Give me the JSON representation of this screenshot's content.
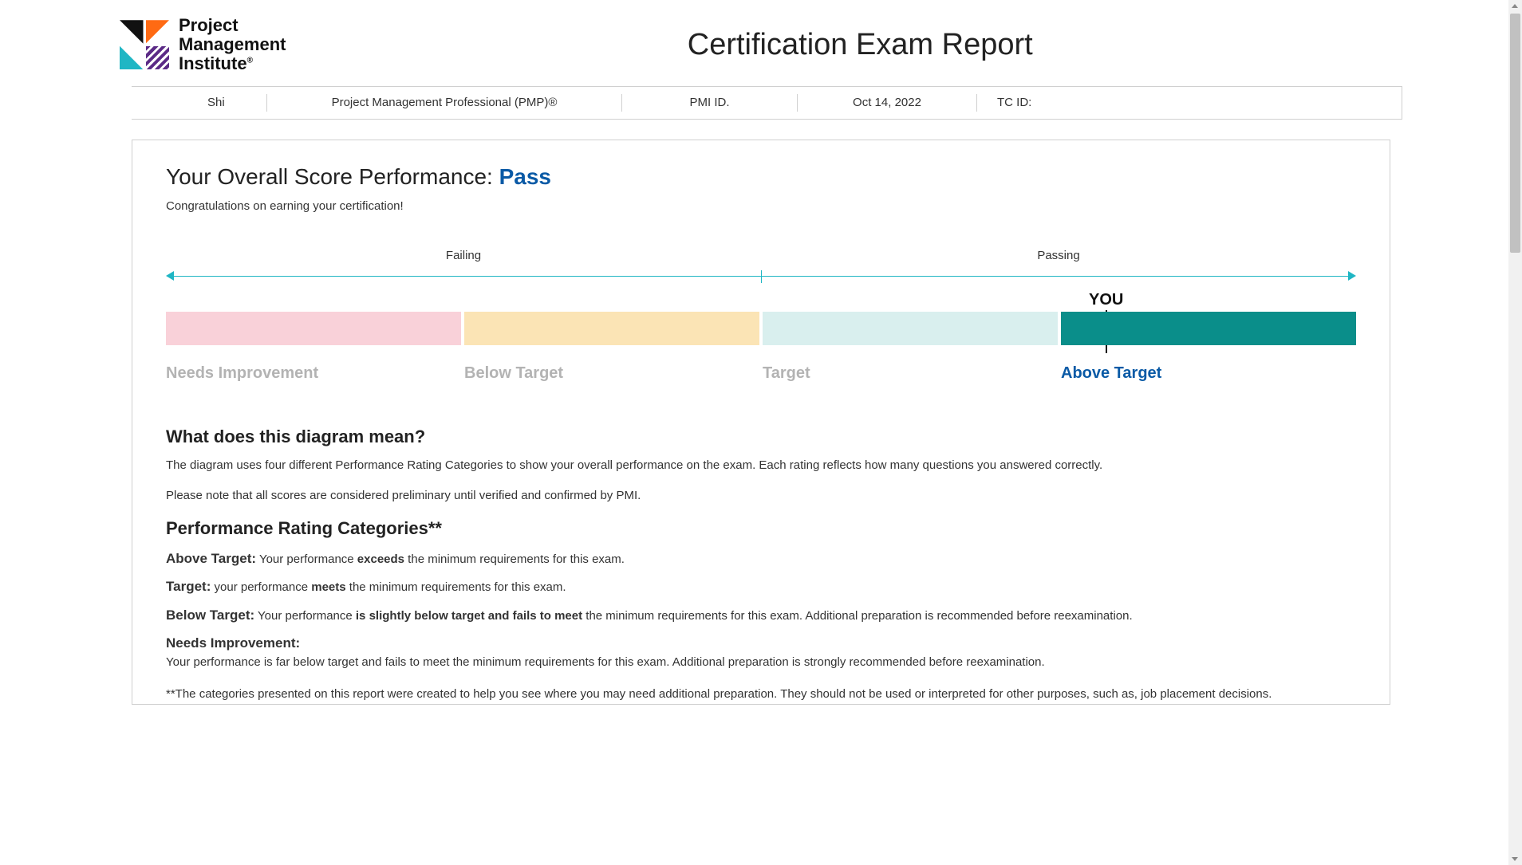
{
  "header": {
    "org_line1": "Project",
    "org_line2": "Management",
    "org_line3": "Institute",
    "report_title": "Certification Exam Report"
  },
  "info_bar": {
    "name_fragment": "Shi",
    "certification": "Project Management Professional (PMP)®",
    "pmi_id_label": "PMI ID.",
    "date": "Oct 14, 2022",
    "tc_id_label": "TC ID:"
  },
  "score": {
    "heading_prefix": "Your Overall Score Performance: ",
    "result": "Pass",
    "congrats": "Congratulations on earning your certification!"
  },
  "diagram": {
    "failing_label": "Failing",
    "passing_label": "Passing",
    "you_label": "YOU",
    "you_position_pct": 79,
    "axis_color": "#1fb6c4",
    "bands": [
      {
        "label": "Needs Improvement",
        "color": "#f9d1d9",
        "active": false
      },
      {
        "label": "Below Target",
        "color": "#fbe4b5",
        "active": false
      },
      {
        "label": "Target",
        "color": "#d9efee",
        "active": false
      },
      {
        "label": "Above Target",
        "color": "#0a8e8a",
        "active": true
      }
    ],
    "inactive_label_color": "#b3b3b3",
    "active_label_color": "#0a5aa6"
  },
  "explain": {
    "heading": "What does this diagram mean?",
    "p1": "The diagram uses four different Performance Rating Categories to show your overall performance on the exam. Each rating reflects how many questions you answered correctly.",
    "p2": "Please note that all scores are considered preliminary until verified and confirmed by PMI."
  },
  "categories": {
    "heading": "Performance Rating Categories**",
    "items": [
      {
        "name": "Above Target:",
        "pre": " Your performance ",
        "bold": "exceeds",
        "post": " the minimum requirements for this exam."
      },
      {
        "name": "Target:",
        "pre": " your performance ",
        "bold": "meets",
        "post": " the minimum requirements for this exam."
      },
      {
        "name": "Below Target:",
        "pre": " Your performance ",
        "bold": "is slightly below target and fails to meet",
        "post": " the minimum requirements for this exam. Additional preparation is recommended before reexamination."
      },
      {
        "name": "Needs Improvement:",
        "pre": "",
        "bold": "",
        "post": "Your performance is far below target and fails to meet the minimum requirements for this exam. Additional preparation is strongly recommended before reexamination.",
        "block": true
      }
    ],
    "footnote": "**The categories presented on this report were created to help you see where you may need additional preparation. They should not be used or interpreted for other purposes, such as, job placement decisions."
  }
}
